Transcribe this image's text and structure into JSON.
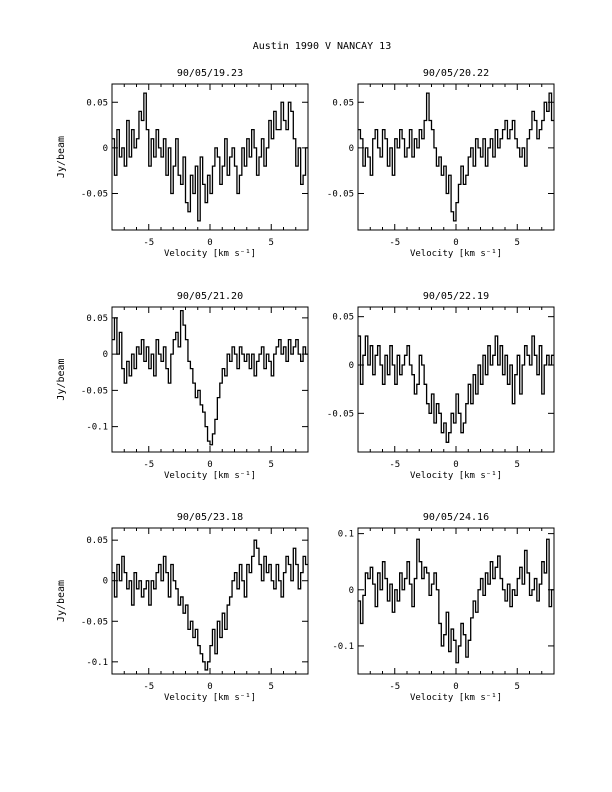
{
  "page": {
    "title": "Austin 1990 V    NANCAY     13"
  },
  "chart_data": [
    {
      "type": "line",
      "title": "90/05/19.23",
      "xlabel": "Velocity [km s⁻¹]",
      "ylabel": "Jy/beam",
      "xlim": [
        -8,
        8
      ],
      "ylim": [
        -0.09,
        0.07
      ],
      "xticks": [
        -5,
        0,
        5
      ],
      "yticks": [
        0.05,
        0,
        -0.05
      ],
      "ytick_labels": [
        "0.05",
        "0",
        "-0.05"
      ],
      "x": [
        -8.0,
        -7.8,
        -7.6,
        -7.4,
        -7.2,
        -7.0,
        -6.8,
        -6.6,
        -6.4,
        -6.2,
        -6.0,
        -5.8,
        -5.6,
        -5.4,
        -5.2,
        -5.0,
        -4.8,
        -4.6,
        -4.4,
        -4.2,
        -4.0,
        -3.8,
        -3.6,
        -3.4,
        -3.2,
        -3.0,
        -2.8,
        -2.6,
        -2.4,
        -2.2,
        -2.0,
        -1.8,
        -1.6,
        -1.4,
        -1.2,
        -1.0,
        -0.8,
        -0.6,
        -0.4,
        -0.2,
        0.0,
        0.2,
        0.4,
        0.6,
        0.8,
        1.0,
        1.2,
        1.4,
        1.6,
        1.8,
        2.0,
        2.2,
        2.4,
        2.6,
        2.8,
        3.0,
        3.2,
        3.4,
        3.6,
        3.8,
        4.0,
        4.2,
        4.4,
        4.6,
        4.8,
        5.0,
        5.2,
        5.4,
        5.6,
        5.8,
        6.0,
        6.2,
        6.4,
        6.6,
        6.8,
        7.0,
        7.2,
        7.4,
        7.6,
        7.8
      ],
      "values": [
        0.01,
        -0.03,
        0.02,
        -0.01,
        0.0,
        -0.02,
        0.03,
        -0.01,
        0.02,
        0.0,
        0.01,
        0.04,
        0.03,
        0.06,
        0.02,
        -0.02,
        0.01,
        -0.01,
        0.02,
        0.0,
        -0.01,
        0.01,
        -0.03,
        0.0,
        -0.05,
        -0.02,
        0.01,
        -0.03,
        -0.04,
        -0.01,
        -0.06,
        -0.07,
        -0.03,
        -0.05,
        -0.02,
        -0.08,
        -0.01,
        -0.04,
        -0.06,
        -0.03,
        -0.05,
        -0.02,
        0.0,
        -0.01,
        -0.04,
        -0.02,
        0.01,
        -0.03,
        -0.01,
        0.0,
        -0.02,
        -0.05,
        -0.03,
        0.0,
        -0.02,
        0.01,
        -0.01,
        0.02,
        0.0,
        -0.03,
        -0.01,
        0.01,
        -0.02,
        0.0,
        0.03,
        0.01,
        0.04,
        0.02,
        0.02,
        0.05,
        0.03,
        0.02,
        0.05,
        0.04,
        0.01,
        -0.02,
        0.0,
        -0.04,
        -0.03,
        0.0
      ]
    },
    {
      "type": "line",
      "title": "90/05/20.22",
      "xlabel": "Velocity [km s⁻¹]",
      "ylabel": "",
      "xlim": [
        -8,
        8
      ],
      "ylim": [
        -0.09,
        0.07
      ],
      "xticks": [
        -5,
        0,
        5
      ],
      "yticks": [
        0.05,
        0,
        -0.05
      ],
      "ytick_labels": [
        "0.05",
        "0",
        "-0.05"
      ],
      "x": [
        -8.0,
        -7.8,
        -7.6,
        -7.4,
        -7.2,
        -7.0,
        -6.8,
        -6.6,
        -6.4,
        -6.2,
        -6.0,
        -5.8,
        -5.6,
        -5.4,
        -5.2,
        -5.0,
        -4.8,
        -4.6,
        -4.4,
        -4.2,
        -4.0,
        -3.8,
        -3.6,
        -3.4,
        -3.2,
        -3.0,
        -2.8,
        -2.6,
        -2.4,
        -2.2,
        -2.0,
        -1.8,
        -1.6,
        -1.4,
        -1.2,
        -1.0,
        -0.8,
        -0.6,
        -0.4,
        -0.2,
        0.0,
        0.2,
        0.4,
        0.6,
        0.8,
        1.0,
        1.2,
        1.4,
        1.6,
        1.8,
        2.0,
        2.2,
        2.4,
        2.6,
        2.8,
        3.0,
        3.2,
        3.4,
        3.6,
        3.8,
        4.0,
        4.2,
        4.4,
        4.6,
        4.8,
        5.0,
        5.2,
        5.4,
        5.6,
        5.8,
        6.0,
        6.2,
        6.4,
        6.6,
        6.8,
        7.0,
        7.2,
        7.4,
        7.6,
        7.8
      ],
      "values": [
        0.02,
        0.01,
        -0.02,
        0.0,
        -0.01,
        -0.03,
        0.01,
        0.02,
        0.0,
        -0.01,
        0.02,
        0.01,
        -0.02,
        0.0,
        -0.03,
        0.01,
        0.0,
        0.02,
        0.01,
        -0.01,
        0.0,
        0.02,
        -0.01,
        0.01,
        0.0,
        0.02,
        0.01,
        0.03,
        0.06,
        0.03,
        0.02,
        0.0,
        -0.02,
        -0.01,
        -0.03,
        -0.02,
        -0.05,
        -0.03,
        -0.07,
        -0.08,
        -0.06,
        -0.04,
        -0.02,
        -0.04,
        -0.03,
        -0.01,
        0.0,
        -0.02,
        0.01,
        0.0,
        -0.01,
        0.01,
        -0.02,
        0.0,
        0.01,
        -0.01,
        0.02,
        0.0,
        0.01,
        0.02,
        0.03,
        0.01,
        0.02,
        0.03,
        0.01,
        0.0,
        -0.01,
        0.0,
        -0.02,
        0.01,
        0.02,
        0.04,
        0.03,
        0.01,
        0.02,
        0.03,
        0.05,
        0.04,
        0.06,
        0.03
      ]
    },
    {
      "type": "line",
      "title": "90/05/21.20",
      "xlabel": "Velocity [km s⁻¹]",
      "ylabel": "Jy/beam",
      "xlim": [
        -8,
        8
      ],
      "ylim": [
        -0.135,
        0.065
      ],
      "xticks": [
        -5,
        0,
        5
      ],
      "yticks": [
        0.05,
        0,
        -0.05,
        -0.1
      ],
      "ytick_labels": [
        "0.05",
        "0",
        "-0.05",
        "-0.1"
      ],
      "x": [
        -8.0,
        -7.8,
        -7.6,
        -7.4,
        -7.2,
        -7.0,
        -6.8,
        -6.6,
        -6.4,
        -6.2,
        -6.0,
        -5.8,
        -5.6,
        -5.4,
        -5.2,
        -5.0,
        -4.8,
        -4.6,
        -4.4,
        -4.2,
        -4.0,
        -3.8,
        -3.6,
        -3.4,
        -3.2,
        -3.0,
        -2.8,
        -2.6,
        -2.4,
        -2.2,
        -2.0,
        -1.8,
        -1.6,
        -1.4,
        -1.2,
        -1.0,
        -0.8,
        -0.6,
        -0.4,
        -0.2,
        0.0,
        0.2,
        0.4,
        0.6,
        0.8,
        1.0,
        1.2,
        1.4,
        1.6,
        1.8,
        2.0,
        2.2,
        2.4,
        2.6,
        2.8,
        3.0,
        3.2,
        3.4,
        3.6,
        3.8,
        4.0,
        4.2,
        4.4,
        4.6,
        4.8,
        5.0,
        5.2,
        5.4,
        5.6,
        5.8,
        6.0,
        6.2,
        6.4,
        6.6,
        6.8,
        7.0,
        7.2,
        7.4,
        7.6,
        7.8
      ],
      "values": [
        0.02,
        0.05,
        0.0,
        0.03,
        -0.02,
        -0.04,
        -0.01,
        -0.03,
        0.0,
        -0.02,
        0.01,
        0.0,
        0.02,
        -0.01,
        0.01,
        -0.02,
        0.0,
        -0.03,
        0.02,
        0.0,
        -0.01,
        0.01,
        -0.02,
        -0.04,
        0.0,
        0.02,
        0.03,
        0.01,
        0.06,
        0.04,
        0.02,
        -0.01,
        -0.02,
        -0.04,
        -0.06,
        -0.05,
        -0.07,
        -0.08,
        -0.1,
        -0.12,
        -0.125,
        -0.11,
        -0.09,
        -0.06,
        -0.04,
        -0.02,
        -0.03,
        0.0,
        -0.01,
        0.01,
        0.0,
        -0.02,
        0.01,
        0.0,
        -0.01,
        0.0,
        -0.02,
        0.0,
        -0.03,
        -0.01,
        0.0,
        0.01,
        -0.02,
        0.0,
        -0.01,
        -0.03,
        0.0,
        0.01,
        0.02,
        0.0,
        0.01,
        -0.01,
        0.02,
        0.0,
        0.01,
        0.02,
        0.0,
        -0.01,
        0.01,
        0.0
      ]
    },
    {
      "type": "line",
      "title": "90/05/22.19",
      "xlabel": "Velocity [km s⁻¹]",
      "ylabel": "",
      "xlim": [
        -8,
        8
      ],
      "ylim": [
        -0.09,
        0.06
      ],
      "xticks": [
        -5,
        0,
        5
      ],
      "yticks": [
        0.05,
        0,
        -0.05
      ],
      "ytick_labels": [
        "0.05",
        "0",
        "-0.05"
      ],
      "x": [
        -8.0,
        -7.8,
        -7.6,
        -7.4,
        -7.2,
        -7.0,
        -6.8,
        -6.6,
        -6.4,
        -6.2,
        -6.0,
        -5.8,
        -5.6,
        -5.4,
        -5.2,
        -5.0,
        -4.8,
        -4.6,
        -4.4,
        -4.2,
        -4.0,
        -3.8,
        -3.6,
        -3.4,
        -3.2,
        -3.0,
        -2.8,
        -2.6,
        -2.4,
        -2.2,
        -2.0,
        -1.8,
        -1.6,
        -1.4,
        -1.2,
        -1.0,
        -0.8,
        -0.6,
        -0.4,
        -0.2,
        0.0,
        0.2,
        0.4,
        0.6,
        0.8,
        1.0,
        1.2,
        1.4,
        1.6,
        1.8,
        2.0,
        2.2,
        2.4,
        2.6,
        2.8,
        3.0,
        3.2,
        3.4,
        3.6,
        3.8,
        4.0,
        4.2,
        4.4,
        4.6,
        4.8,
        5.0,
        5.2,
        5.4,
        5.6,
        5.8,
        6.0,
        6.2,
        6.4,
        6.6,
        6.8,
        7.0,
        7.2,
        7.4,
        7.6,
        7.8
      ],
      "values": [
        0.03,
        -0.02,
        0.01,
        0.03,
        0.0,
        0.02,
        -0.01,
        0.01,
        0.02,
        0.0,
        -0.02,
        0.01,
        -0.01,
        0.02,
        0.0,
        -0.02,
        0.01,
        -0.01,
        0.0,
        0.01,
        0.02,
        0.0,
        -0.01,
        -0.03,
        -0.02,
        0.01,
        0.0,
        -0.02,
        -0.04,
        -0.05,
        -0.03,
        -0.06,
        -0.04,
        -0.05,
        -0.07,
        -0.06,
        -0.08,
        -0.07,
        -0.05,
        -0.06,
        -0.03,
        -0.05,
        -0.07,
        -0.06,
        -0.04,
        -0.02,
        -0.04,
        -0.01,
        -0.03,
        0.0,
        -0.02,
        0.01,
        -0.01,
        0.02,
        0.0,
        0.01,
        0.03,
        0.0,
        0.02,
        -0.01,
        0.01,
        -0.02,
        0.0,
        -0.04,
        -0.01,
        0.01,
        -0.03,
        0.0,
        0.02,
        0.01,
        0.0,
        0.03,
        0.01,
        -0.01,
        0.02,
        -0.03,
        0.0,
        0.01,
        0.0,
        0.01
      ]
    },
    {
      "type": "line",
      "title": "90/05/23.18",
      "xlabel": "Velocity [km s⁻¹]",
      "ylabel": "Jy/beam",
      "xlim": [
        -8,
        8
      ],
      "ylim": [
        -0.115,
        0.065
      ],
      "xticks": [
        -5,
        0,
        5
      ],
      "yticks": [
        0.05,
        0,
        -0.05,
        -0.1
      ],
      "ytick_labels": [
        "0.05",
        "0",
        "-0.05",
        "-0.1"
      ],
      "x": [
        -8.0,
        -7.8,
        -7.6,
        -7.4,
        -7.2,
        -7.0,
        -6.8,
        -6.6,
        -6.4,
        -6.2,
        -6.0,
        -5.8,
        -5.6,
        -5.4,
        -5.2,
        -5.0,
        -4.8,
        -4.6,
        -4.4,
        -4.2,
        -4.0,
        -3.8,
        -3.6,
        -3.4,
        -3.2,
        -3.0,
        -2.8,
        -2.6,
        -2.4,
        -2.2,
        -2.0,
        -1.8,
        -1.6,
        -1.4,
        -1.2,
        -1.0,
        -0.8,
        -0.6,
        -0.4,
        -0.2,
        0.0,
        0.2,
        0.4,
        0.6,
        0.8,
        1.0,
        1.2,
        1.4,
        1.6,
        1.8,
        2.0,
        2.2,
        2.4,
        2.6,
        2.8,
        3.0,
        3.2,
        3.4,
        3.6,
        3.8,
        4.0,
        4.2,
        4.4,
        4.6,
        4.8,
        5.0,
        5.2,
        5.4,
        5.6,
        5.8,
        6.0,
        6.2,
        6.4,
        6.6,
        6.8,
        7.0,
        7.2,
        7.4,
        7.6,
        7.8
      ],
      "values": [
        0.01,
        -0.02,
        0.02,
        0.0,
        0.03,
        0.01,
        -0.01,
        0.0,
        -0.03,
        0.01,
        -0.01,
        0.0,
        -0.02,
        -0.01,
        0.0,
        -0.03,
        0.0,
        -0.01,
        0.01,
        0.02,
        0.0,
        0.03,
        0.01,
        -0.02,
        0.02,
        0.0,
        -0.01,
        -0.03,
        -0.02,
        -0.04,
        -0.03,
        -0.06,
        -0.05,
        -0.07,
        -0.06,
        -0.08,
        -0.09,
        -0.1,
        -0.11,
        -0.1,
        -0.08,
        -0.06,
        -0.09,
        -0.05,
        -0.07,
        -0.04,
        -0.06,
        -0.03,
        -0.02,
        0.0,
        0.01,
        -0.01,
        0.02,
        0.0,
        -0.02,
        0.02,
        0.01,
        0.03,
        0.05,
        0.04,
        0.02,
        0.0,
        0.03,
        0.01,
        0.02,
        0.0,
        -0.01,
        0.02,
        0.0,
        -0.02,
        0.01,
        0.03,
        0.02,
        0.0,
        0.04,
        0.02,
        -0.01,
        0.01,
        0.03,
        0.02
      ]
    },
    {
      "type": "line",
      "title": "90/05/24.16",
      "xlabel": "Velocity [km s⁻¹]",
      "ylabel": "",
      "xlim": [
        -8,
        8
      ],
      "ylim": [
        -0.15,
        0.11
      ],
      "xticks": [
        -5,
        0,
        5
      ],
      "yticks": [
        0.1,
        0,
        -0.1
      ],
      "ytick_labels": [
        "0.1",
        "0",
        "-0.1"
      ],
      "x": [
        -8.0,
        -7.8,
        -7.6,
        -7.4,
        -7.2,
        -7.0,
        -6.8,
        -6.6,
        -6.4,
        -6.2,
        -6.0,
        -5.8,
        -5.6,
        -5.4,
        -5.2,
        -5.0,
        -4.8,
        -4.6,
        -4.4,
        -4.2,
        -4.0,
        -3.8,
        -3.6,
        -3.4,
        -3.2,
        -3.0,
        -2.8,
        -2.6,
        -2.4,
        -2.2,
        -2.0,
        -1.8,
        -1.6,
        -1.4,
        -1.2,
        -1.0,
        -0.8,
        -0.6,
        -0.4,
        -0.2,
        0.0,
        0.2,
        0.4,
        0.6,
        0.8,
        1.0,
        1.2,
        1.4,
        1.6,
        1.8,
        2.0,
        2.2,
        2.4,
        2.6,
        2.8,
        3.0,
        3.2,
        3.4,
        3.6,
        3.8,
        4.0,
        4.2,
        4.4,
        4.6,
        4.8,
        5.0,
        5.2,
        5.4,
        5.6,
        5.8,
        6.0,
        6.2,
        6.4,
        6.6,
        6.8,
        7.0,
        7.2,
        7.4,
        7.6,
        7.8
      ],
      "values": [
        -0.02,
        -0.06,
        -0.01,
        0.03,
        0.02,
        0.04,
        0.01,
        -0.03,
        0.03,
        0.0,
        0.05,
        0.02,
        -0.02,
        0.01,
        -0.04,
        0.0,
        -0.02,
        0.03,
        0.0,
        0.02,
        0.05,
        0.01,
        -0.03,
        0.02,
        0.09,
        0.05,
        0.02,
        0.04,
        0.03,
        -0.01,
        0.01,
        0.03,
        0.0,
        -0.06,
        -0.1,
        -0.08,
        -0.04,
        -0.11,
        -0.07,
        -0.09,
        -0.13,
        -0.1,
        -0.06,
        -0.08,
        -0.12,
        -0.09,
        -0.05,
        -0.02,
        -0.04,
        0.0,
        0.02,
        -0.01,
        0.03,
        0.01,
        0.05,
        0.02,
        0.04,
        0.06,
        0.02,
        0.0,
        -0.02,
        0.01,
        -0.03,
        0.0,
        -0.01,
        0.02,
        0.04,
        0.01,
        0.07,
        0.03,
        -0.01,
        0.0,
        0.02,
        -0.02,
        0.01,
        0.05,
        0.03,
        0.09,
        -0.03,
        0.0
      ]
    }
  ]
}
